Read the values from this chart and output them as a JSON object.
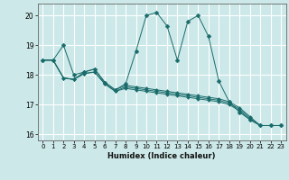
{
  "xlabel": "Humidex (Indice chaleur)",
  "ylabel": "",
  "background_color": "#cce8e8",
  "grid_color": "#ffffff",
  "line_color": "#1a6b6b",
  "xlim": [
    -0.5,
    23.5
  ],
  "ylim": [
    15.8,
    20.4
  ],
  "yticks": [
    16,
    17,
    18,
    19,
    20
  ],
  "xticks": [
    0,
    1,
    2,
    3,
    4,
    5,
    6,
    7,
    8,
    9,
    10,
    11,
    12,
    13,
    14,
    15,
    16,
    17,
    18,
    19,
    20,
    21,
    22,
    23
  ],
  "series": [
    {
      "x": [
        0,
        1,
        2,
        3,
        4,
        5,
        6,
        7,
        8,
        9,
        10,
        11,
        12,
        13,
        14,
        15,
        16,
        17,
        18,
        19,
        20,
        21,
        22,
        23
      ],
      "y": [
        18.5,
        18.5,
        19.0,
        18.0,
        18.1,
        18.2,
        17.75,
        17.5,
        17.7,
        18.8,
        20.0,
        20.1,
        19.65,
        18.5,
        19.8,
        20.0,
        19.3,
        17.8,
        17.1,
        16.75,
        16.5,
        16.3,
        16.3,
        16.3
      ]
    },
    {
      "x": [
        0,
        1,
        2,
        3,
        4,
        5,
        6,
        7,
        8,
        9,
        10,
        11,
        12,
        13,
        14,
        15,
        16,
        17,
        18,
        19,
        20,
        21,
        22,
        23
      ],
      "y": [
        18.5,
        18.5,
        17.9,
        17.85,
        18.1,
        18.2,
        17.75,
        17.5,
        17.65,
        17.6,
        17.55,
        17.5,
        17.45,
        17.4,
        17.35,
        17.3,
        17.25,
        17.2,
        17.1,
        16.9,
        16.6,
        16.3,
        16.3,
        16.3
      ]
    },
    {
      "x": [
        0,
        1,
        2,
        3,
        4,
        5,
        6,
        7,
        8,
        9,
        10,
        11,
        12,
        13,
        14,
        15,
        16,
        17,
        18,
        19,
        20,
        21,
        22,
        23
      ],
      "y": [
        18.5,
        18.5,
        17.9,
        17.85,
        18.05,
        18.1,
        17.7,
        17.45,
        17.6,
        17.55,
        17.5,
        17.45,
        17.4,
        17.35,
        17.3,
        17.25,
        17.2,
        17.15,
        17.05,
        16.85,
        16.55,
        16.3,
        16.3,
        16.3
      ]
    },
    {
      "x": [
        0,
        1,
        2,
        3,
        4,
        5,
        6,
        7,
        8,
        9,
        10,
        11,
        12,
        13,
        14,
        15,
        16,
        17,
        18,
        19,
        20,
        21,
        22,
        23
      ],
      "y": [
        18.5,
        18.5,
        17.9,
        17.85,
        18.05,
        18.1,
        17.7,
        17.45,
        17.55,
        17.5,
        17.45,
        17.4,
        17.35,
        17.3,
        17.25,
        17.2,
        17.15,
        17.1,
        17.0,
        16.8,
        16.5,
        16.3,
        16.3,
        16.3
      ]
    }
  ]
}
